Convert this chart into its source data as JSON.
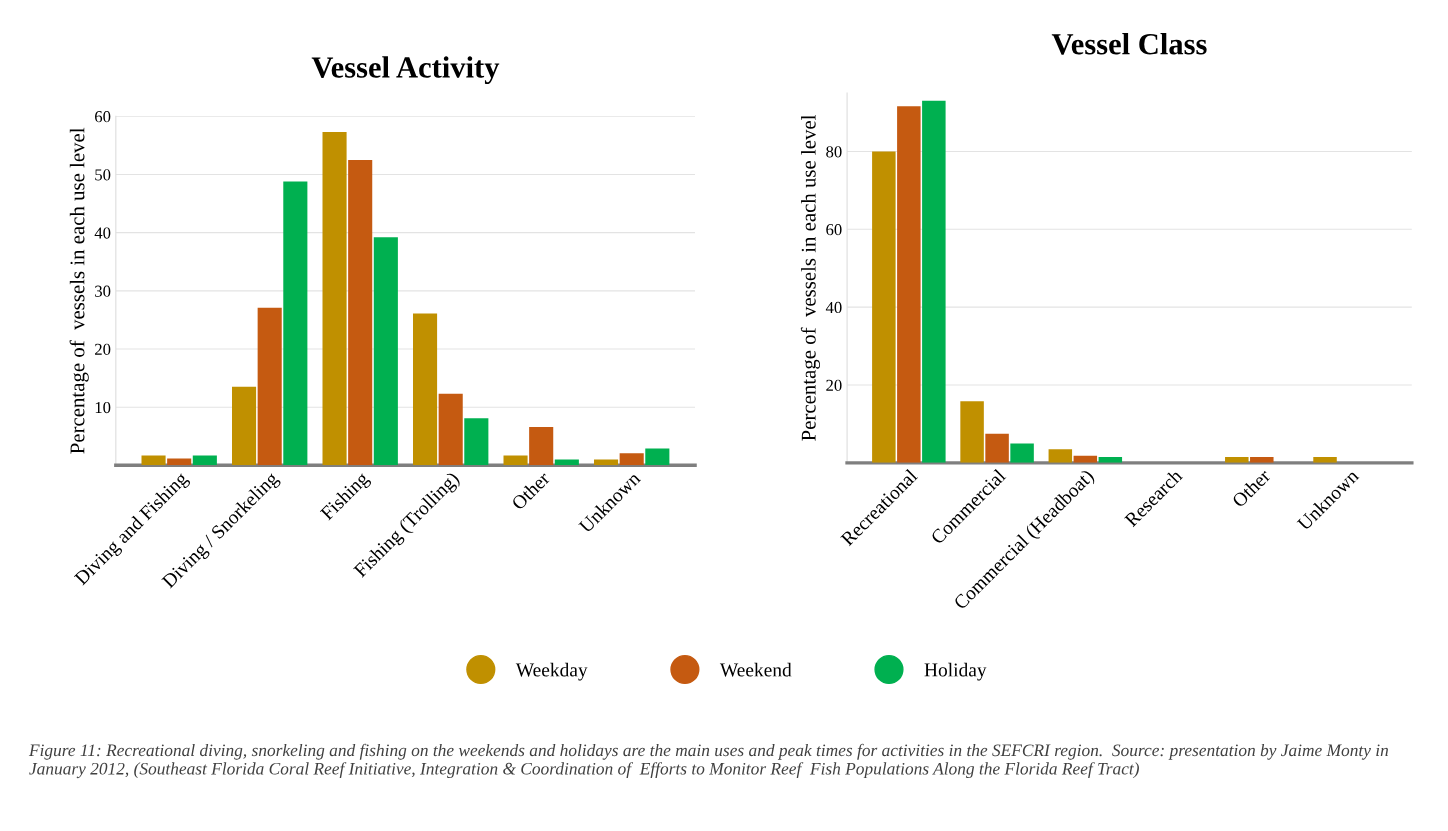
{
  "chart_data": [
    {
      "type": "bar",
      "title": "Vessel Activity",
      "ylabel": "Percentage of  vessels in each use level",
      "categories": [
        "Diving and Fishing",
        "Diving / Snorkeling",
        "Fishing",
        "Fishing (Trolling)",
        "Other",
        "Unknown"
      ],
      "series": [
        {
          "name": "Weekday",
          "color": "#c09000",
          "values": [
            1.7,
            13.5,
            57.3,
            26.1,
            1.7,
            1.0
          ]
        },
        {
          "name": "Weekend",
          "color": "#c55a11",
          "values": [
            1.2,
            27.1,
            52.5,
            12.3,
            6.6,
            2.1
          ]
        },
        {
          "name": "Holiday",
          "color": "#00b050",
          "values": [
            1.7,
            48.8,
            39.2,
            8.1,
            1.0,
            2.9
          ]
        }
      ],
      "ylim": [
        0,
        60
      ],
      "yticks": [
        10,
        20,
        30,
        40,
        50,
        60
      ],
      "grid": "y",
      "legend": "bottom",
      "annotations": [
        "Figure 11: Recreational diving, snorkeling and fishing on the weekends and holidays are the main uses and peak times for activities in the SEFCRI region.  Source: presentation by Jaime Monty in January 2012, (Southeast Florida Coral Reef Initiative, Integration & Coordination of  Efforts to Monitor Reef  Fish Populations Along the Florida Reef Tract)"
      ]
    },
    {
      "type": "bar",
      "title": "Vessel Class",
      "ylabel": "Percentage of  vessels in each use level",
      "categories": [
        "Recreational",
        "Commercial",
        "Commercial (Headboat)",
        "Research",
        "Other",
        "Unknown"
      ],
      "series": [
        {
          "name": "Weekday",
          "color": "#c09000",
          "values": [
            80.0,
            15.8,
            3.5,
            0,
            1.5,
            1.5
          ]
        },
        {
          "name": "Weekend",
          "color": "#c55a11",
          "values": [
            91.6,
            7.5,
            1.8,
            0,
            1.5,
            0
          ]
        },
        {
          "name": "Holiday",
          "color": "#00b050",
          "values": [
            93.0,
            5.0,
            1.5,
            0,
            0,
            0
          ]
        }
      ],
      "ylim": [
        0,
        95
      ],
      "yticks": [
        20,
        40,
        60,
        80
      ],
      "grid": "y"
    }
  ]
}
